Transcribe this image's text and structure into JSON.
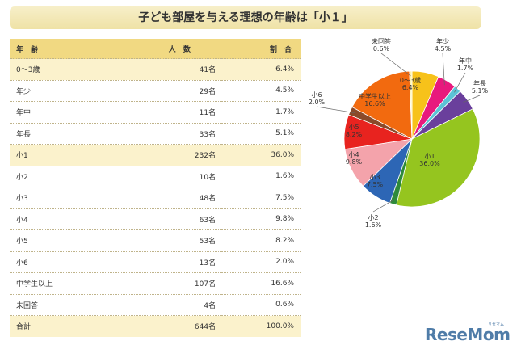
{
  "title": "子ども部屋を与える理想の年齢は「小１」",
  "table": {
    "headers": [
      "年 齢",
      "人 数",
      "割 合"
    ],
    "rows": [
      {
        "label": "0〜3歳",
        "count": "41名",
        "pct": "6.4%",
        "highlight": true
      },
      {
        "label": "年少",
        "count": "29名",
        "pct": "4.5%",
        "highlight": false
      },
      {
        "label": "年中",
        "count": "11名",
        "pct": "1.7%",
        "highlight": false
      },
      {
        "label": "年長",
        "count": "33名",
        "pct": "5.1%",
        "highlight": false
      },
      {
        "label": "小1",
        "count": "232名",
        "pct": "36.0%",
        "highlight": true
      },
      {
        "label": "小2",
        "count": "10名",
        "pct": "1.6%",
        "highlight": false
      },
      {
        "label": "小3",
        "count": "48名",
        "pct": "7.5%",
        "highlight": false
      },
      {
        "label": "小4",
        "count": "63名",
        "pct": "9.8%",
        "highlight": false
      },
      {
        "label": "小5",
        "count": "53名",
        "pct": "8.2%",
        "highlight": false
      },
      {
        "label": "小6",
        "count": "13名",
        "pct": "2.0%",
        "highlight": false
      },
      {
        "label": "中学生以上",
        "count": "107名",
        "pct": "16.6%",
        "highlight": false
      },
      {
        "label": "未回答",
        "count": "4名",
        "pct": "0.6%",
        "highlight": false
      }
    ],
    "total": {
      "label": "合計",
      "count": "644名",
      "pct": "100.0%"
    }
  },
  "chart_data": {
    "type": "pie",
    "slices": [
      {
        "name": "0〜3歳",
        "value": 6.4,
        "color": "#f7c21a"
      },
      {
        "name": "年少",
        "value": 4.5,
        "color": "#e8197d"
      },
      {
        "name": "年中",
        "value": 1.7,
        "color": "#5cc3d6"
      },
      {
        "name": "年長",
        "value": 5.1,
        "color": "#6a3f9c"
      },
      {
        "name": "小1",
        "value": 36.0,
        "color": "#95c51f"
      },
      {
        "name": "小2",
        "value": 1.6,
        "color": "#2f8a3b"
      },
      {
        "name": "小3",
        "value": 7.5,
        "color": "#2d66b5"
      },
      {
        "name": "小4",
        "value": 9.8,
        "color": "#f4a3ab"
      },
      {
        "name": "小5",
        "value": 8.2,
        "color": "#e8231f"
      },
      {
        "name": "小6",
        "value": 2.0,
        "color": "#8a4a2a"
      },
      {
        "name": "中学生以上",
        "value": 16.6,
        "color": "#f26a0f"
      },
      {
        "name": "未回答",
        "value": 0.6,
        "color": "#fff3b0"
      }
    ],
    "labels": [
      {
        "name": "未回答",
        "pct": "0.6%"
      },
      {
        "name": "年少",
        "pct": "4.5%"
      },
      {
        "name": "0〜3歳",
        "pct": "6.4%"
      },
      {
        "name": "年中",
        "pct": "1.7%"
      },
      {
        "name": "年長",
        "pct": "5.1%"
      },
      {
        "name": "小6",
        "pct": "2.0%"
      },
      {
        "name": "中学生以上",
        "pct": "16.6%"
      },
      {
        "name": "小5",
        "pct": "8.2%"
      },
      {
        "name": "小4",
        "pct": "9.8%"
      },
      {
        "name": "小3",
        "pct": "7.5%"
      },
      {
        "name": "小1",
        "pct": "36.0%"
      },
      {
        "name": "小2",
        "pct": "1.6%"
      }
    ]
  },
  "logo": {
    "text": "ReseMom",
    "sub": "リセマム"
  }
}
